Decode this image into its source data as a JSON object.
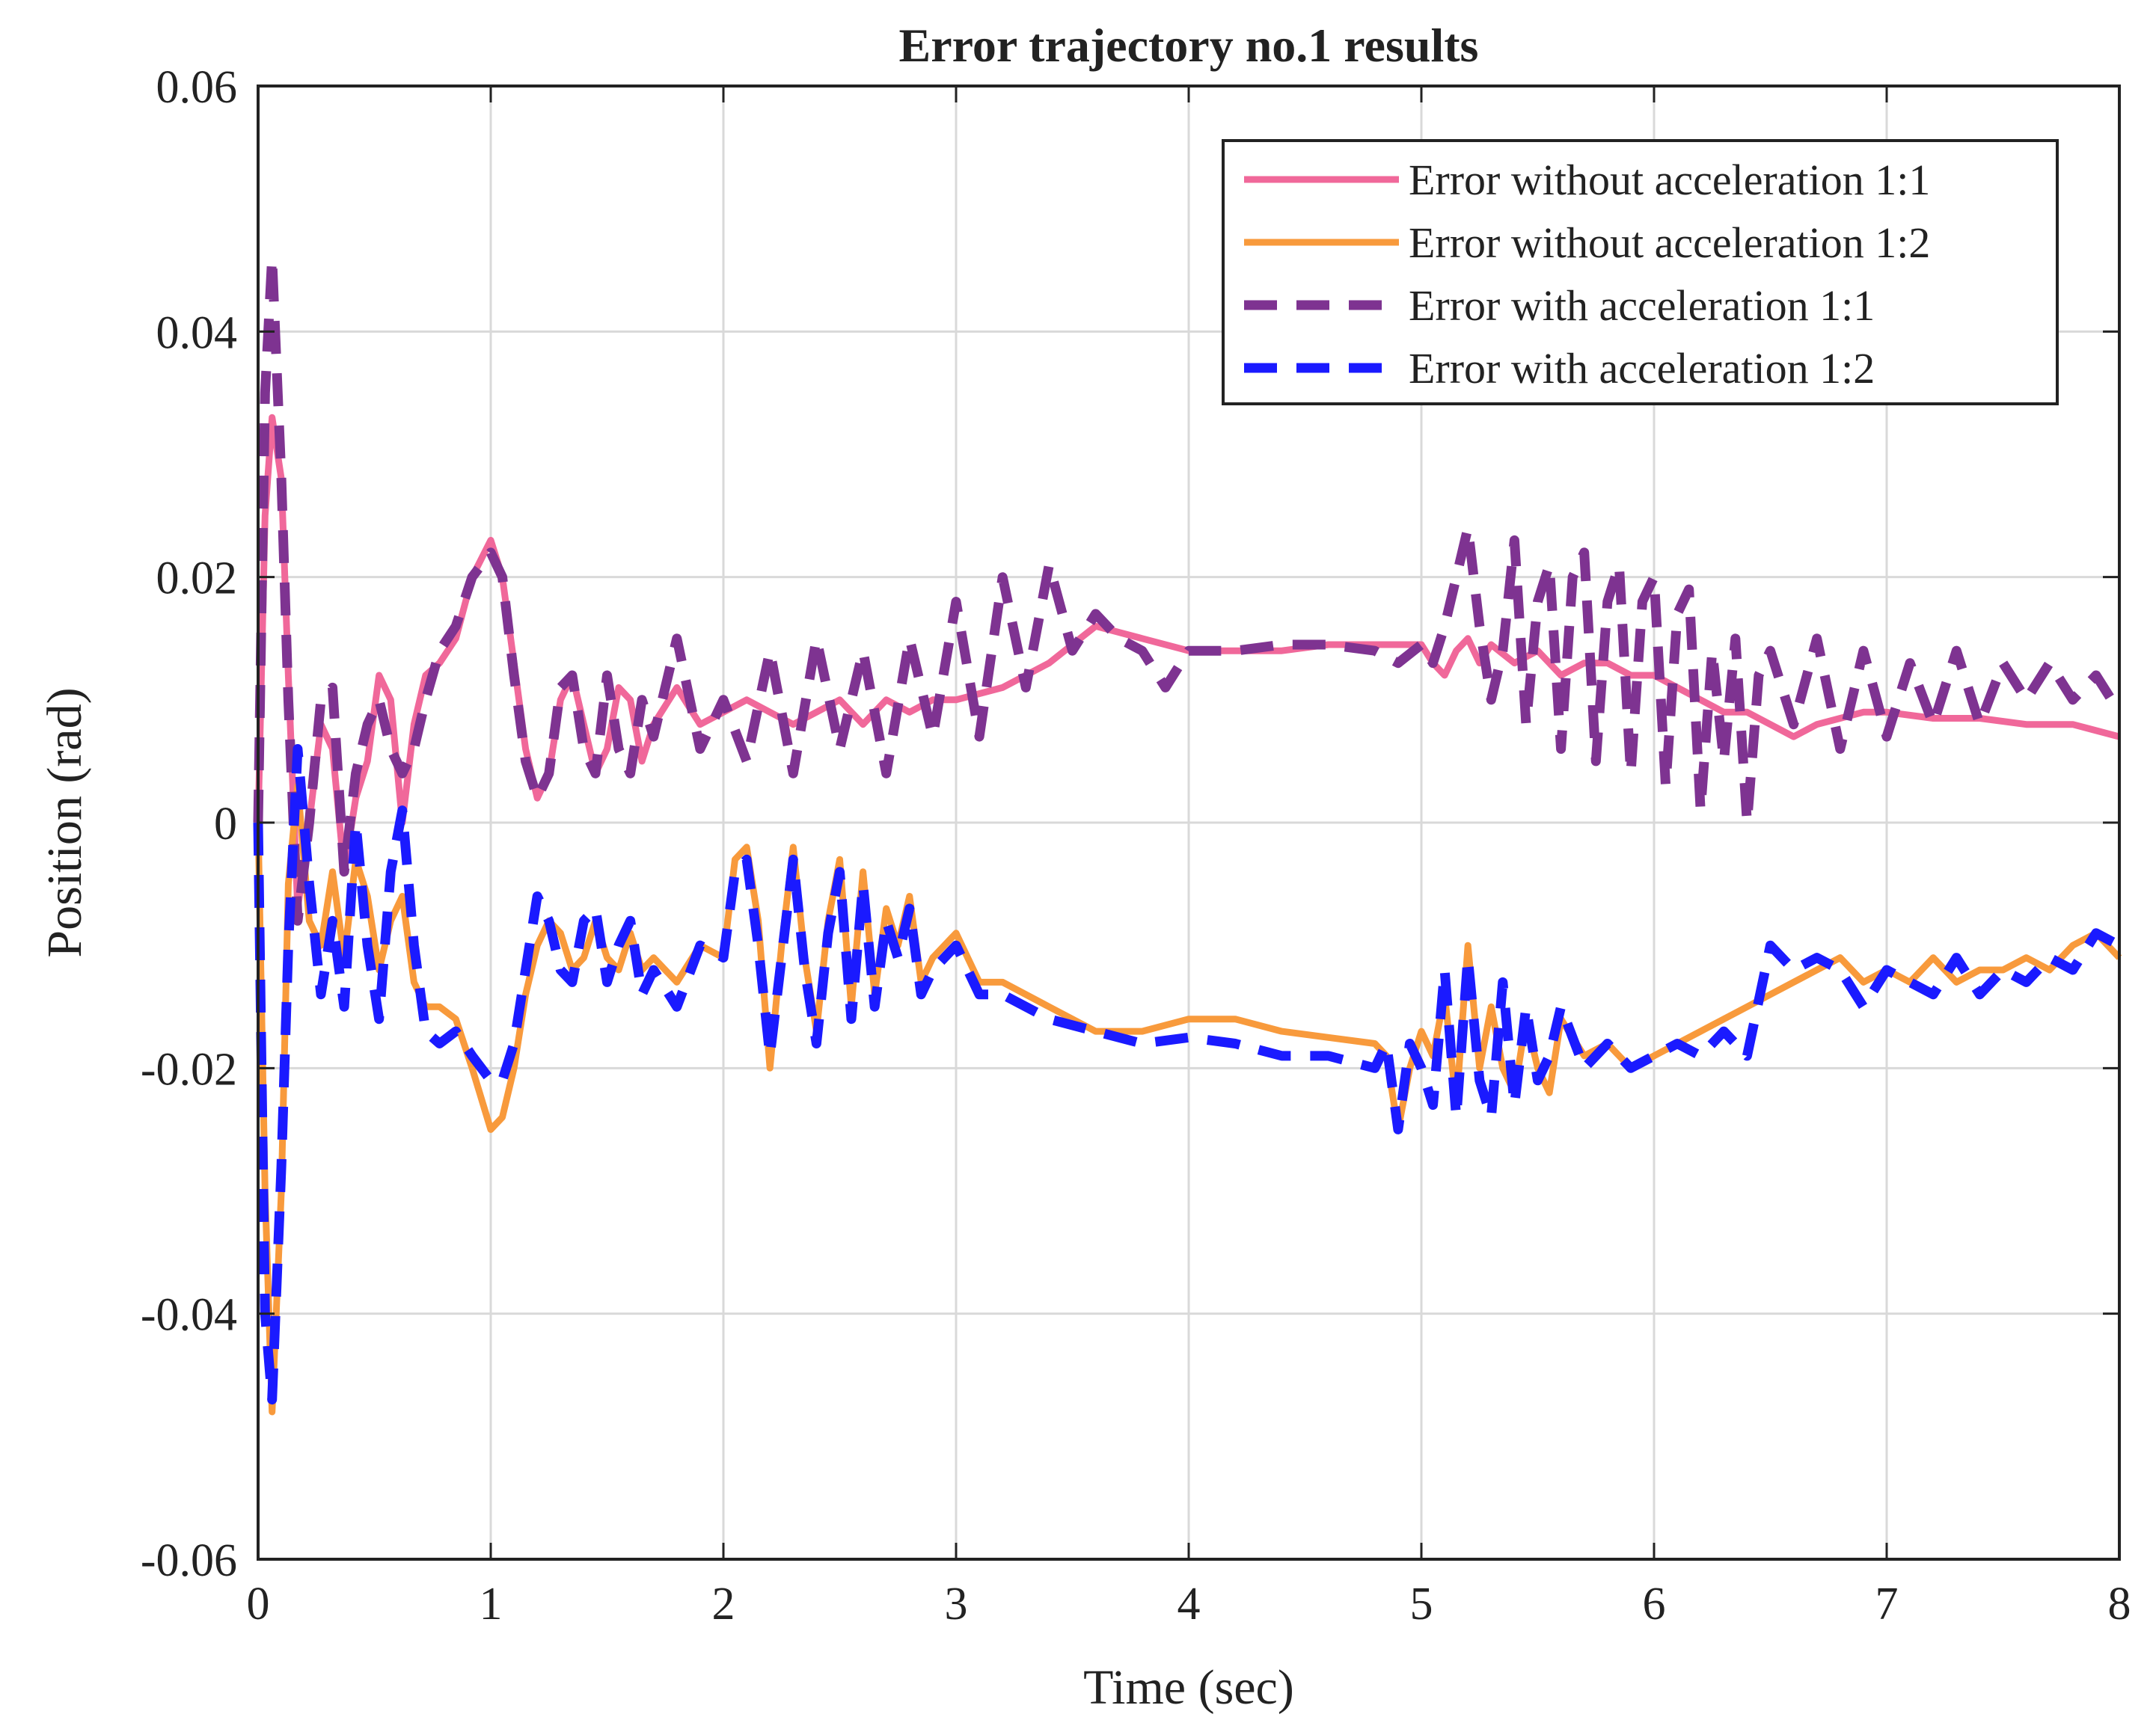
{
  "chart_data": {
    "type": "line",
    "title": "Error trajectory no.1 results",
    "xlabel": "Time (sec)",
    "ylabel": "Position (rad)",
    "xlim": [
      0,
      8
    ],
    "ylim": [
      -0.06,
      0.06
    ],
    "x_ticks": [
      0,
      1,
      2,
      3,
      4,
      5,
      6,
      7,
      8
    ],
    "x_tick_labels": [
      "0",
      "1",
      "2",
      "3",
      "4",
      "5",
      "6",
      "7",
      "8"
    ],
    "y_ticks": [
      -0.06,
      -0.04,
      -0.02,
      0,
      0.02,
      0.04,
      0.06
    ],
    "y_tick_labels": [
      "-0.06",
      "-0.04",
      "-0.02",
      "0",
      "0.02",
      "0.04",
      "0.06"
    ],
    "grid": true,
    "legend_position": "top-right",
    "series": [
      {
        "name": "Error without acceleration 1:1",
        "color": "#f0689a",
        "dash": "solid",
        "x": [
          0,
          0.03,
          0.06,
          0.1,
          0.13,
          0.17,
          0.22,
          0.27,
          0.32,
          0.37,
          0.42,
          0.47,
          0.52,
          0.57,
          0.62,
          0.67,
          0.72,
          0.78,
          0.85,
          0.92,
          1.0,
          1.05,
          1.1,
          1.15,
          1.2,
          1.25,
          1.3,
          1.35,
          1.4,
          1.45,
          1.5,
          1.55,
          1.6,
          1.65,
          1.7,
          1.8,
          1.9,
          2.0,
          2.1,
          2.2,
          2.3,
          2.4,
          2.5,
          2.6,
          2.7,
          2.8,
          2.9,
          3.0,
          3.2,
          3.4,
          3.6,
          3.8,
          4.0,
          4.2,
          4.4,
          4.6,
          4.8,
          4.9,
          5.0,
          5.05,
          5.1,
          5.15,
          5.2,
          5.25,
          5.3,
          5.4,
          5.5,
          5.6,
          5.7,
          5.8,
          5.9,
          6.0,
          6.1,
          6.2,
          6.3,
          6.4,
          6.5,
          6.6,
          6.7,
          6.8,
          6.9,
          7.0,
          7.2,
          7.4,
          7.6,
          7.8,
          8.0
        ],
        "y": [
          0,
          0.025,
          0.033,
          0.028,
          0.012,
          -0.007,
          0.0,
          0.008,
          0.006,
          -0.004,
          0.002,
          0.005,
          0.012,
          0.01,
          0.0,
          0.008,
          0.012,
          0.013,
          0.015,
          0.02,
          0.023,
          0.02,
          0.013,
          0.006,
          0.002,
          0.004,
          0.01,
          0.012,
          0.008,
          0.004,
          0.006,
          0.011,
          0.01,
          0.005,
          0.008,
          0.011,
          0.008,
          0.009,
          0.01,
          0.009,
          0.008,
          0.009,
          0.01,
          0.008,
          0.01,
          0.009,
          0.01,
          0.01,
          0.011,
          0.013,
          0.016,
          0.015,
          0.014,
          0.014,
          0.014,
          0.0145,
          0.0145,
          0.0145,
          0.0145,
          0.013,
          0.012,
          0.014,
          0.015,
          0.013,
          0.0145,
          0.013,
          0.014,
          0.012,
          0.013,
          0.013,
          0.012,
          0.012,
          0.011,
          0.01,
          0.009,
          0.009,
          0.008,
          0.007,
          0.008,
          0.0085,
          0.009,
          0.009,
          0.0085,
          0.0085,
          0.008,
          0.008,
          0.007
        ]
      },
      {
        "name": "Error without acceleration 1:2",
        "color": "#f89a3c",
        "dash": "solid",
        "x": [
          0,
          0.03,
          0.06,
          0.1,
          0.13,
          0.17,
          0.22,
          0.27,
          0.32,
          0.37,
          0.42,
          0.47,
          0.52,
          0.57,
          0.62,
          0.67,
          0.72,
          0.78,
          0.85,
          0.92,
          1.0,
          1.05,
          1.1,
          1.15,
          1.2,
          1.25,
          1.3,
          1.35,
          1.4,
          1.45,
          1.5,
          1.55,
          1.6,
          1.65,
          1.7,
          1.8,
          1.9,
          2.0,
          2.05,
          2.1,
          2.15,
          2.2,
          2.25,
          2.3,
          2.35,
          2.4,
          2.45,
          2.5,
          2.55,
          2.6,
          2.65,
          2.7,
          2.75,
          2.8,
          2.85,
          2.9,
          3.0,
          3.1,
          3.2,
          3.4,
          3.6,
          3.8,
          4.0,
          4.2,
          4.4,
          4.6,
          4.8,
          4.85,
          4.9,
          4.95,
          5.0,
          5.05,
          5.1,
          5.15,
          5.2,
          5.25,
          5.3,
          5.35,
          5.4,
          5.45,
          5.5,
          5.55,
          5.6,
          5.7,
          5.8,
          5.9,
          6.0,
          6.1,
          6.2,
          6.3,
          6.4,
          6.5,
          6.6,
          6.7,
          6.8,
          6.9,
          7.0,
          7.1,
          7.2,
          7.3,
          7.4,
          7.5,
          7.6,
          7.7,
          7.8,
          7.9,
          8.0
        ],
        "y": [
          0,
          -0.03,
          -0.048,
          -0.03,
          -0.005,
          0.003,
          -0.008,
          -0.01,
          -0.004,
          -0.011,
          -0.003,
          -0.006,
          -0.012,
          -0.008,
          -0.006,
          -0.013,
          -0.015,
          -0.015,
          -0.016,
          -0.02,
          -0.025,
          -0.024,
          -0.02,
          -0.014,
          -0.01,
          -0.008,
          -0.009,
          -0.012,
          -0.011,
          -0.008,
          -0.011,
          -0.012,
          -0.009,
          -0.012,
          -0.011,
          -0.013,
          -0.01,
          -0.011,
          -0.003,
          -0.002,
          -0.008,
          -0.02,
          -0.01,
          -0.002,
          -0.011,
          -0.017,
          -0.008,
          -0.003,
          -0.015,
          -0.004,
          -0.014,
          -0.007,
          -0.01,
          -0.006,
          -0.013,
          -0.011,
          -0.009,
          -0.013,
          -0.013,
          -0.015,
          -0.017,
          -0.017,
          -0.016,
          -0.016,
          -0.017,
          -0.0175,
          -0.018,
          -0.019,
          -0.025,
          -0.02,
          -0.017,
          -0.019,
          -0.014,
          -0.023,
          -0.01,
          -0.02,
          -0.015,
          -0.02,
          -0.022,
          -0.016,
          -0.02,
          -0.022,
          -0.016,
          -0.019,
          -0.018,
          -0.02,
          -0.019,
          -0.018,
          -0.017,
          -0.016,
          -0.015,
          -0.014,
          -0.013,
          -0.012,
          -0.011,
          -0.013,
          -0.012,
          -0.013,
          -0.011,
          -0.013,
          -0.012,
          -0.012,
          -0.011,
          -0.012,
          -0.01,
          -0.009,
          -0.011
        ]
      },
      {
        "name": "Error with acceleration 1:1",
        "color": "#7e3391",
        "dash": "dashed",
        "x": [
          0,
          0.03,
          0.06,
          0.1,
          0.13,
          0.17,
          0.22,
          0.27,
          0.32,
          0.37,
          0.42,
          0.47,
          0.52,
          0.57,
          0.62,
          0.67,
          0.72,
          0.78,
          0.85,
          0.92,
          1.0,
          1.05,
          1.1,
          1.15,
          1.2,
          1.25,
          1.3,
          1.35,
          1.4,
          1.45,
          1.5,
          1.55,
          1.6,
          1.65,
          1.7,
          1.8,
          1.9,
          2.0,
          2.1,
          2.2,
          2.3,
          2.4,
          2.5,
          2.6,
          2.7,
          2.8,
          2.9,
          3.0,
          3.1,
          3.2,
          3.3,
          3.4,
          3.5,
          3.6,
          3.7,
          3.8,
          3.9,
          4.0,
          4.2,
          4.4,
          4.6,
          4.8,
          4.9,
          5.0,
          5.05,
          5.1,
          5.15,
          5.2,
          5.25,
          5.3,
          5.35,
          5.4,
          5.45,
          5.5,
          5.55,
          5.6,
          5.65,
          5.7,
          5.75,
          5.8,
          5.85,
          5.9,
          5.95,
          6.0,
          6.05,
          6.1,
          6.15,
          6.2,
          6.25,
          6.3,
          6.35,
          6.4,
          6.45,
          6.5,
          6.6,
          6.7,
          6.8,
          6.9,
          7.0,
          7.1,
          7.2,
          7.3,
          7.4,
          7.5,
          7.6,
          7.7,
          7.8,
          7.9,
          8.0
        ],
        "y": [
          0,
          0.035,
          0.046,
          0.028,
          0.01,
          -0.008,
          0.0,
          0.01,
          0.011,
          -0.004,
          0.004,
          0.008,
          0.01,
          0.006,
          0.004,
          0.006,
          0.01,
          0.014,
          0.016,
          0.02,
          0.022,
          0.02,
          0.012,
          0.005,
          0.002,
          0.004,
          0.011,
          0.012,
          0.006,
          0.004,
          0.012,
          0.006,
          0.004,
          0.01,
          0.007,
          0.015,
          0.006,
          0.01,
          0.005,
          0.014,
          0.004,
          0.015,
          0.006,
          0.014,
          0.004,
          0.015,
          0.007,
          0.018,
          0.007,
          0.02,
          0.011,
          0.021,
          0.014,
          0.017,
          0.015,
          0.014,
          0.011,
          0.014,
          0.014,
          0.0145,
          0.0145,
          0.014,
          0.013,
          0.0145,
          0.013,
          0.016,
          0.02,
          0.024,
          0.016,
          0.01,
          0.014,
          0.023,
          0.008,
          0.018,
          0.021,
          0.006,
          0.02,
          0.022,
          0.005,
          0.018,
          0.021,
          0.004,
          0.018,
          0.02,
          0.003,
          0.017,
          0.019,
          0.001,
          0.014,
          0.005,
          0.015,
          0.0,
          0.012,
          0.014,
          0.008,
          0.015,
          0.006,
          0.014,
          0.007,
          0.013,
          0.008,
          0.014,
          0.008,
          0.013,
          0.01,
          0.013,
          0.01,
          0.012,
          0.009
        ]
      },
      {
        "name": "Error with acceleration 1:2",
        "color": "#1a1aff",
        "dash": "dashed",
        "x": [
          0,
          0.03,
          0.06,
          0.1,
          0.13,
          0.17,
          0.22,
          0.27,
          0.32,
          0.37,
          0.42,
          0.47,
          0.52,
          0.57,
          0.62,
          0.67,
          0.72,
          0.78,
          0.85,
          0.92,
          1.0,
          1.05,
          1.1,
          1.15,
          1.2,
          1.25,
          1.3,
          1.35,
          1.4,
          1.45,
          1.5,
          1.55,
          1.6,
          1.65,
          1.7,
          1.8,
          1.9,
          2.0,
          2.05,
          2.1,
          2.15,
          2.2,
          2.25,
          2.3,
          2.35,
          2.4,
          2.45,
          2.5,
          2.55,
          2.6,
          2.65,
          2.7,
          2.75,
          2.8,
          2.85,
          2.9,
          3.0,
          3.1,
          3.2,
          3.4,
          3.6,
          3.8,
          4.0,
          4.2,
          4.4,
          4.6,
          4.8,
          4.85,
          4.9,
          4.95,
          5.0,
          5.05,
          5.1,
          5.15,
          5.2,
          5.25,
          5.3,
          5.35,
          5.4,
          5.45,
          5.5,
          5.55,
          5.6,
          5.7,
          5.8,
          5.9,
          6.0,
          6.1,
          6.2,
          6.3,
          6.4,
          6.5,
          6.6,
          6.7,
          6.8,
          6.9,
          7.0,
          7.1,
          7.2,
          7.3,
          7.4,
          7.5,
          7.6,
          7.7,
          7.8,
          7.9,
          8.0
        ],
        "y": [
          0,
          -0.04,
          -0.047,
          -0.028,
          -0.01,
          0.006,
          -0.005,
          -0.014,
          -0.008,
          -0.015,
          0.0,
          -0.01,
          -0.016,
          -0.004,
          0.001,
          -0.01,
          -0.017,
          -0.018,
          -0.017,
          -0.019,
          -0.021,
          -0.021,
          -0.018,
          -0.012,
          -0.006,
          -0.008,
          -0.012,
          -0.013,
          -0.008,
          -0.007,
          -0.013,
          -0.01,
          -0.008,
          -0.014,
          -0.012,
          -0.015,
          -0.01,
          -0.011,
          -0.004,
          -0.003,
          -0.01,
          -0.019,
          -0.011,
          -0.003,
          -0.012,
          -0.018,
          -0.009,
          -0.004,
          -0.016,
          -0.005,
          -0.015,
          -0.008,
          -0.011,
          -0.007,
          -0.014,
          -0.012,
          -0.01,
          -0.014,
          -0.014,
          -0.016,
          -0.017,
          -0.018,
          -0.0175,
          -0.018,
          -0.019,
          -0.019,
          -0.02,
          -0.018,
          -0.025,
          -0.018,
          -0.02,
          -0.023,
          -0.012,
          -0.024,
          -0.011,
          -0.021,
          -0.024,
          -0.013,
          -0.023,
          -0.015,
          -0.021,
          -0.019,
          -0.015,
          -0.02,
          -0.018,
          -0.02,
          -0.019,
          -0.018,
          -0.019,
          -0.017,
          -0.019,
          -0.01,
          -0.012,
          -0.011,
          -0.012,
          -0.015,
          -0.012,
          -0.013,
          -0.014,
          -0.011,
          -0.014,
          -0.012,
          -0.013,
          -0.011,
          -0.012,
          -0.009,
          -0.01
        ]
      }
    ]
  }
}
